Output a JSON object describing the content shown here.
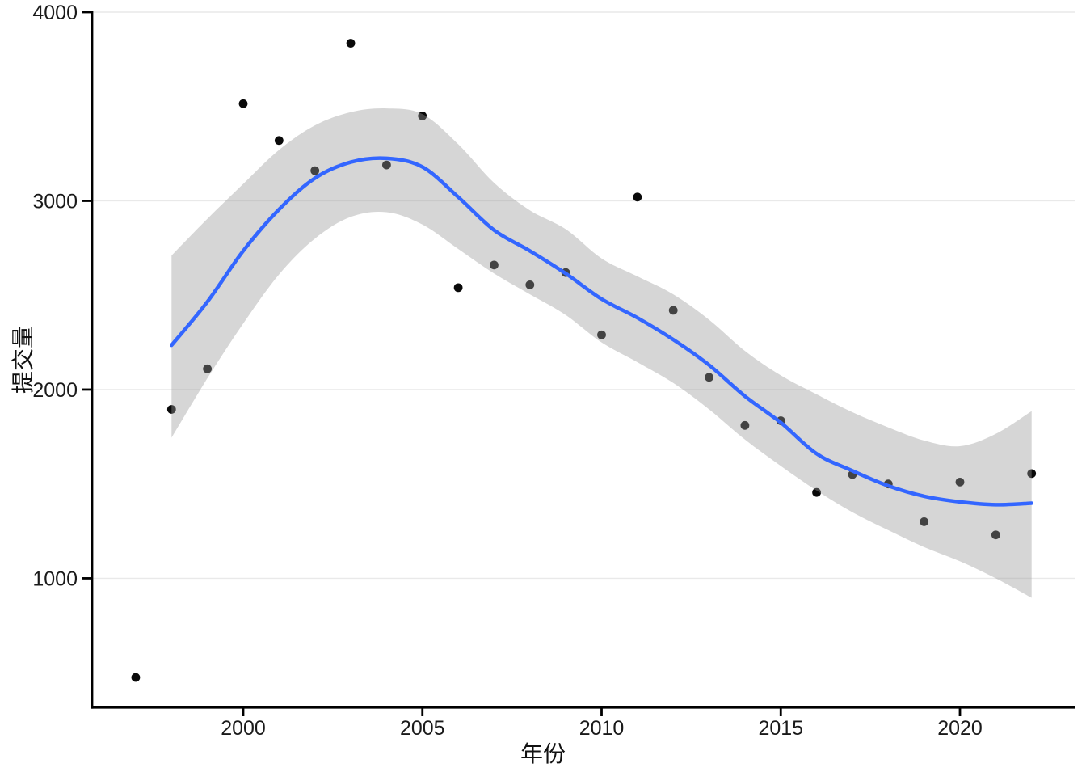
{
  "chart_data": {
    "type": "scatter",
    "title": "",
    "xlabel": "年份",
    "ylabel": "提交量",
    "legend": "none",
    "grid": "horizontal-major-only",
    "xlim": [
      1995.8,
      2023.2
    ],
    "ylim": [
      312,
      4021
    ],
    "x_ticks": [
      {
        "label": "2000",
        "value": 2000
      },
      {
        "label": "2005",
        "value": 2005
      },
      {
        "label": "2010",
        "value": 2010
      },
      {
        "label": "2015",
        "value": 2015
      },
      {
        "label": "2020",
        "value": 2020
      }
    ],
    "y_ticks": [
      {
        "label": "1000",
        "value": 1000
      },
      {
        "label": "2000",
        "value": 2000
      },
      {
        "label": "3000",
        "value": 3000
      },
      {
        "label": "4000",
        "value": 4000
      }
    ],
    "points": [
      {
        "year": 1997,
        "value": 475
      },
      {
        "year": 1998,
        "value": 1895
      },
      {
        "year": 1999,
        "value": 2110
      },
      {
        "year": 2000,
        "value": 3515
      },
      {
        "year": 2001,
        "value": 3320
      },
      {
        "year": 2002,
        "value": 3160
      },
      {
        "year": 2003,
        "value": 3835
      },
      {
        "year": 2004,
        "value": 3190
      },
      {
        "year": 2005,
        "value": 3450
      },
      {
        "year": 2006,
        "value": 2540
      },
      {
        "year": 2007,
        "value": 2660
      },
      {
        "year": 2008,
        "value": 2555
      },
      {
        "year": 2009,
        "value": 2620
      },
      {
        "year": 2010,
        "value": 2290
      },
      {
        "year": 2011,
        "value": 3020
      },
      {
        "year": 2012,
        "value": 2420
      },
      {
        "year": 2013,
        "value": 2065
      },
      {
        "year": 2014,
        "value": 1810
      },
      {
        "year": 2015,
        "value": 1835
      },
      {
        "year": 2016,
        "value": 1455
      },
      {
        "year": 2017,
        "value": 1550
      },
      {
        "year": 2018,
        "value": 1500
      },
      {
        "year": 2019,
        "value": 1300
      },
      {
        "year": 2020,
        "value": 1510
      },
      {
        "year": 2021,
        "value": 1230
      },
      {
        "year": 2022,
        "value": 1555
      }
    ],
    "smooth_line": {
      "name": "loess-trend",
      "points": [
        {
          "year": 1998,
          "value": 2235
        },
        {
          "year": 1999,
          "value": 2465
        },
        {
          "year": 2000,
          "value": 2735
        },
        {
          "year": 2001,
          "value": 2955
        },
        {
          "year": 2002,
          "value": 3120
        },
        {
          "year": 2003,
          "value": 3205
        },
        {
          "year": 2004,
          "value": 3225
        },
        {
          "year": 2005,
          "value": 3180
        },
        {
          "year": 2006,
          "value": 3020
        },
        {
          "year": 2007,
          "value": 2845
        },
        {
          "year": 2008,
          "value": 2735
        },
        {
          "year": 2009,
          "value": 2615
        },
        {
          "year": 2010,
          "value": 2480
        },
        {
          "year": 2011,
          "value": 2380
        },
        {
          "year": 2012,
          "value": 2265
        },
        {
          "year": 2013,
          "value": 2130
        },
        {
          "year": 2014,
          "value": 1965
        },
        {
          "year": 2015,
          "value": 1825
        },
        {
          "year": 2016,
          "value": 1660
        },
        {
          "year": 2017,
          "value": 1570
        },
        {
          "year": 2018,
          "value": 1490
        },
        {
          "year": 2019,
          "value": 1435
        },
        {
          "year": 2020,
          "value": 1405
        },
        {
          "year": 2021,
          "value": 1390
        },
        {
          "year": 2022,
          "value": 1398
        }
      ]
    },
    "ribbon": {
      "name": "confidence-band",
      "points": [
        {
          "year": 1998,
          "lower": 1745,
          "upper": 2710
        },
        {
          "year": 1999,
          "lower": 2060,
          "upper": 2905
        },
        {
          "year": 2000,
          "lower": 2350,
          "upper": 3090
        },
        {
          "year": 2001,
          "lower": 2610,
          "upper": 3270
        },
        {
          "year": 2002,
          "lower": 2800,
          "upper": 3400
        },
        {
          "year": 2003,
          "lower": 2915,
          "upper": 3470
        },
        {
          "year": 2004,
          "lower": 2940,
          "upper": 3490
        },
        {
          "year": 2005,
          "lower": 2875,
          "upper": 3460
        },
        {
          "year": 2006,
          "lower": 2745,
          "upper": 3300
        },
        {
          "year": 2007,
          "lower": 2615,
          "upper": 3095
        },
        {
          "year": 2008,
          "lower": 2505,
          "upper": 2950
        },
        {
          "year": 2009,
          "lower": 2395,
          "upper": 2850
        },
        {
          "year": 2010,
          "lower": 2250,
          "upper": 2695
        },
        {
          "year": 2011,
          "lower": 2145,
          "upper": 2600
        },
        {
          "year": 2012,
          "lower": 2035,
          "upper": 2505
        },
        {
          "year": 2013,
          "lower": 1895,
          "upper": 2370
        },
        {
          "year": 2014,
          "lower": 1735,
          "upper": 2205
        },
        {
          "year": 2015,
          "lower": 1595,
          "upper": 2075
        },
        {
          "year": 2016,
          "lower": 1465,
          "upper": 1975
        },
        {
          "year": 2017,
          "lower": 1350,
          "upper": 1880
        },
        {
          "year": 2018,
          "lower": 1255,
          "upper": 1800
        },
        {
          "year": 2019,
          "lower": 1165,
          "upper": 1730
        },
        {
          "year": 2020,
          "lower": 1090,
          "upper": 1700
        },
        {
          "year": 2021,
          "lower": 1000,
          "upper": 1765
        },
        {
          "year": 2022,
          "lower": 897,
          "upper": 1886
        }
      ]
    },
    "colors": {
      "point": "#0a0a0a",
      "line": "#3366FF",
      "ribbon": "#999999",
      "ribbon_opacity": 0.4,
      "grid": "#e9e9e9",
      "axis": "#000000",
      "tick_text": "#1a1a1a"
    }
  }
}
